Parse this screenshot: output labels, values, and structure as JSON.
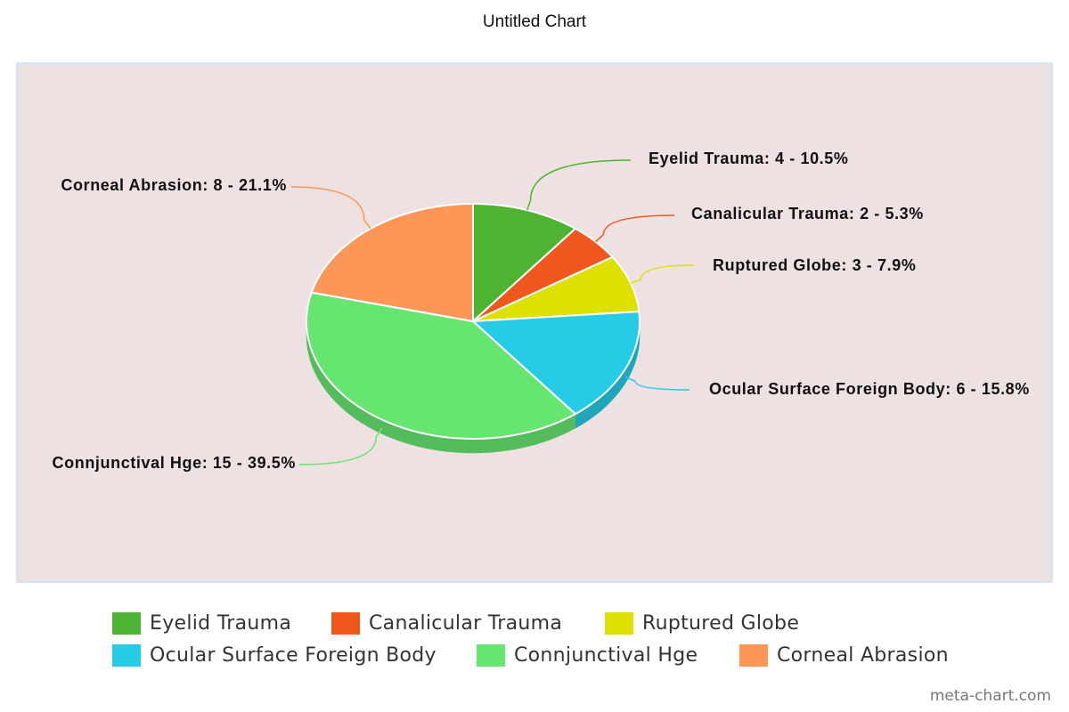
{
  "title": "Untitled Chart",
  "credit": "meta-chart.com",
  "colors": {
    "background": "#ede1e1",
    "frame_border": "#d8e3ee"
  },
  "chart_data": {
    "type": "pie",
    "style": "3d",
    "title": "Untitled Chart",
    "grid": false,
    "legend_position": "bottom",
    "data_label_format": "{name}: {value} - {percent}%",
    "slices": [
      {
        "name": "Eyelid Trauma",
        "value": 4,
        "percent": 10.5,
        "color": "#4fb332",
        "label": "Eyelid Trauma: 4 - 10.5%"
      },
      {
        "name": "Canalicular Trauma",
        "value": 2,
        "percent": 5.3,
        "color": "#ef571f",
        "label": "Canalicular Trauma: 2 - 5.3%"
      },
      {
        "name": "Ruptured Globe",
        "value": 3,
        "percent": 7.9,
        "color": "#dee000",
        "label": "Ruptured Globe: 3 - 7.9%"
      },
      {
        "name": "Ocular Surface Foreign Body",
        "value": 6,
        "percent": 15.8,
        "color": "#26cbe6",
        "label": "Ocular Surface Foreign Body: 6 - 15.8%"
      },
      {
        "name": "Connjunctival Hge",
        "value": 15,
        "percent": 39.5,
        "color": "#66e571",
        "label": "Connjunctival Hge: 15 - 39.5%"
      },
      {
        "name": "Corneal Abrasion",
        "value": 8,
        "percent": 21.1,
        "color": "#fe9658",
        "label": "Corneal Abrasion: 8 - 21.1%"
      }
    ]
  }
}
